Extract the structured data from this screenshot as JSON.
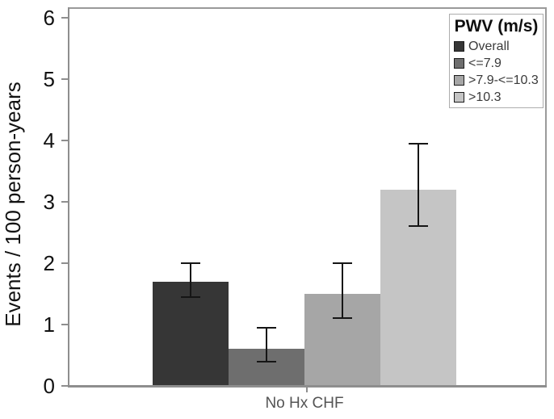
{
  "chart_data": {
    "type": "bar",
    "title": "",
    "ylabel": "Events / 100 person-years",
    "xlabel": "",
    "categories": [
      "No Hx CHF"
    ],
    "ylim": [
      0,
      6
    ],
    "yticks": [
      0,
      1,
      2,
      3,
      4,
      5,
      6
    ],
    "grid": false,
    "error_bars": true,
    "legend": {
      "title": "PWV (m/s)",
      "position": "top-right"
    },
    "series": [
      {
        "name": "Overall",
        "values": [
          1.7
        ],
        "ci_low": [
          1.45
        ],
        "ci_high": [
          2.0
        ],
        "color": "#363636"
      },
      {
        "name": "<=7.9",
        "values": [
          0.6
        ],
        "ci_low": [
          0.4
        ],
        "ci_high": [
          0.95
        ],
        "color": "#6e6e6e"
      },
      {
        "name": ">7.9-<=10.3",
        "values": [
          1.5
        ],
        "ci_low": [
          1.1
        ],
        "ci_high": [
          2.0
        ],
        "color": "#a6a6a6"
      },
      {
        "name": ">10.3",
        "values": [
          3.2
        ],
        "ci_low": [
          2.6
        ],
        "ci_high": [
          3.95
        ],
        "color": "#c5c5c5"
      }
    ]
  },
  "colors": {
    "axis": "#8e8e8e",
    "error_bar": "#151515",
    "tick_label": "#121212",
    "x_label": "#545454",
    "background": "#ffffff"
  }
}
